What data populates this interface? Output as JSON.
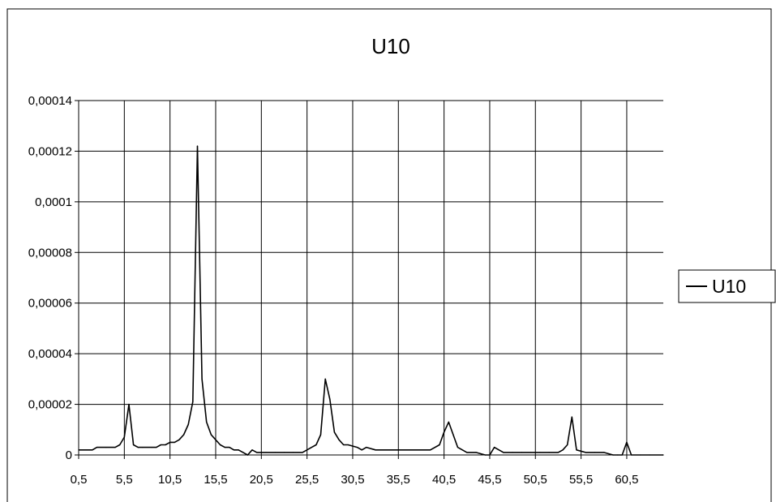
{
  "chart_data": {
    "type": "line",
    "title": "U10",
    "xlabel": "",
    "ylabel": "",
    "x_ticks": [
      "0,5",
      "5,5",
      "10,5",
      "15,5",
      "20,5",
      "25,5",
      "30,5",
      "35,5",
      "40,5",
      "45,5",
      "50,5",
      "55,5",
      "60,5"
    ],
    "y_ticks": [
      "0",
      "0,00002",
      "0,00004",
      "0,00006",
      "0,00008",
      "0,0001",
      "0,00012",
      "0,00014"
    ],
    "xlim": [
      0.5,
      64.5
    ],
    "ylim": [
      0,
      0.00014
    ],
    "grid": true,
    "legend": "right",
    "series": [
      {
        "name": "U10",
        "color": "#000000",
        "x": [
          0.5,
          1.5,
          2.0,
          2.5,
          3.5,
          4.5,
          5.0,
          5.5,
          6.0,
          6.5,
          7.0,
          7.5,
          8.5,
          9.0,
          9.5,
          10.0,
          10.5,
          11.0,
          11.5,
          12.0,
          12.5,
          13.0,
          13.5,
          14.0,
          14.5,
          15.0,
          15.5,
          16.0,
          16.5,
          17.0,
          17.5,
          18.0,
          18.5,
          19.0,
          19.5,
          20.0,
          21.0,
          22.0,
          23.0,
          24.0,
          25.0,
          26.0,
          26.5,
          27.0,
          27.5,
          28.0,
          28.5,
          29.0,
          29.5,
          30.0,
          31.0,
          31.5,
          32.0,
          33.0,
          34.0,
          35.0,
          36.0,
          37.0,
          38.0,
          39.0,
          40.0,
          40.5,
          41.0,
          42.0,
          43.0,
          44.0,
          45.0,
          45.5,
          46.0,
          47.0,
          48.0,
          49.0,
          50.0,
          51.0,
          52.0,
          53.0,
          53.5,
          54.0,
          54.5,
          55.0,
          56.0,
          57.0,
          58.0,
          59.0,
          59.5,
          60.0,
          60.5,
          61.0,
          62.0,
          63.0,
          64.5
        ],
        "values": [
          2e-06,
          2e-06,
          2e-06,
          3e-06,
          3e-06,
          3e-06,
          4e-06,
          7e-06,
          2e-05,
          4e-06,
          3e-06,
          3e-06,
          3e-06,
          3e-06,
          4e-06,
          4e-06,
          5e-06,
          5e-06,
          6e-06,
          8e-06,
          1.2e-05,
          2.1e-05,
          0.000122,
          3e-05,
          1.3e-05,
          8e-06,
          6e-06,
          4e-06,
          3e-06,
          3e-06,
          2e-06,
          2e-06,
          1e-06,
          0,
          2e-06,
          1e-06,
          1e-06,
          1e-06,
          1e-06,
          1e-06,
          1e-06,
          3e-06,
          4e-06,
          8e-06,
          3e-05,
          2.2e-05,
          9e-06,
          6e-06,
          4e-06,
          4e-06,
          3e-06,
          2e-06,
          3e-06,
          2e-06,
          2e-06,
          2e-06,
          2e-06,
          2e-06,
          2e-06,
          2e-06,
          4e-06,
          9e-06,
          1.3e-05,
          3e-06,
          1e-06,
          1e-06,
          0,
          0,
          3e-06,
          1e-06,
          1e-06,
          1e-06,
          1e-06,
          1e-06,
          1e-06,
          1e-06,
          2e-06,
          4e-06,
          1.5e-05,
          2e-06,
          1e-06,
          1e-06,
          1e-06,
          0,
          0,
          0,
          5e-06,
          0,
          0,
          0,
          0
        ]
      }
    ]
  }
}
